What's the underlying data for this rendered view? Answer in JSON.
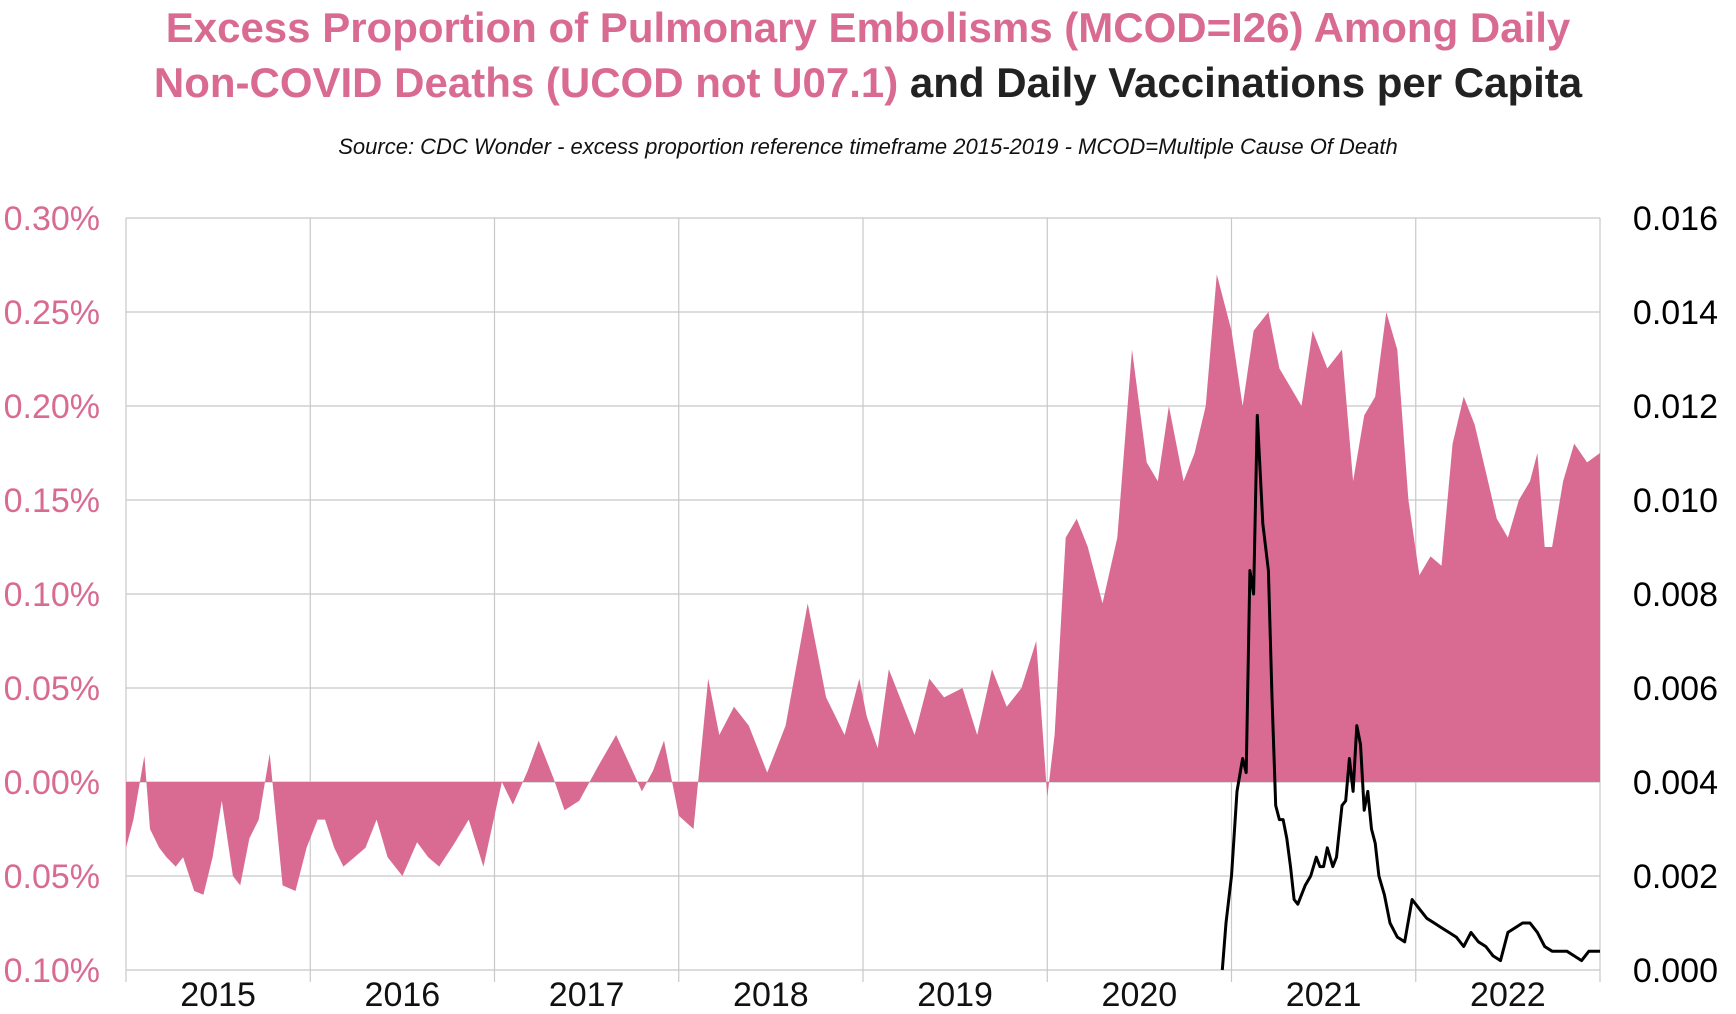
{
  "title": {
    "part1": "Excess Proportion of Pulmonary Embolisms (MCOD=I26) Among Daily",
    "part2_pink": "Non-COVID Deaths (UCOD not U07.1)",
    "part2_connector": " and ",
    "part2_dark": "Daily Vaccinations per Capita"
  },
  "subtitle": "Source: CDC Wonder - excess proportion reference timeframe 2015-2019 - MCOD=Multiple Cause Of Death",
  "colors": {
    "area": "#d96b93",
    "vax": "#000000",
    "grid": "#c8c8c8",
    "left_axis": "#d96b93",
    "right_axis": "#000000"
  },
  "chart_data": {
    "type": "area",
    "title": "Excess Proportion of Pulmonary Embolisms (MCOD=I26) Among Daily Non-COVID Deaths (UCOD not U07.1) and Daily Vaccinations per Capita",
    "subtitle": "Source: CDC Wonder - excess proportion reference timeframe 2015-2019 - MCOD=Multiple Cause Of Death",
    "x_categories": [
      "2015",
      "2016",
      "2017",
      "2018",
      "2019",
      "2020",
      "2021",
      "2022"
    ],
    "left_axis": {
      "ylim": [
        -0.1,
        0.3
      ],
      "ticks": [
        -0.1,
        -0.05,
        0.0,
        0.05,
        0.1,
        0.15,
        0.2,
        0.25,
        0.3
      ],
      "tick_labels": [
        "0.10%",
        "0.05%",
        "0.00%",
        "0.05%",
        "0.10%",
        "0.15%",
        "0.20%",
        "0.25%",
        "0.30%"
      ]
    },
    "right_axis": {
      "ylim": [
        0.0,
        0.016
      ],
      "ticks": [
        0.0,
        0.002,
        0.004,
        0.006,
        0.008,
        0.01,
        0.012,
        0.014,
        0.016
      ],
      "tick_labels": [
        "0.000",
        "0.002",
        "0.004",
        "0.006",
        "0.008",
        "0.010",
        "0.012",
        "0.014",
        "0.016"
      ]
    },
    "grid": true,
    "series": [
      {
        "kind": "area",
        "axis": "left",
        "x": [
          2015.0,
          2015.04,
          2015.1,
          2015.13,
          2015.18,
          2015.22,
          2015.27,
          2015.31,
          2015.37,
          2015.42,
          2015.47,
          2015.52,
          2015.58,
          2015.62,
          2015.67,
          2015.72,
          2015.78,
          2015.85,
          2015.92,
          2015.98,
          2016.04,
          2016.08,
          2016.13,
          2016.18,
          2016.24,
          2016.3,
          2016.36,
          2016.42,
          2016.5,
          2016.58,
          2016.64,
          2016.7,
          2016.78,
          2016.86,
          2016.94,
          2017.04,
          2017.1,
          2017.18,
          2017.24,
          2017.32,
          2017.38,
          2017.46,
          2017.56,
          2017.66,
          2017.74,
          2017.8,
          2017.86,
          2017.92,
          2018.0,
          2018.08,
          2018.16,
          2018.22,
          2018.3,
          2018.38,
          2018.48,
          2018.58,
          2018.7,
          2018.8,
          2018.9,
          2018.98,
          2019.02,
          2019.08,
          2019.14,
          2019.2,
          2019.28,
          2019.36,
          2019.44,
          2019.54,
          2019.62,
          2019.7,
          2019.78,
          2019.86,
          2019.94,
          2020.0,
          2020.04,
          2020.1,
          2020.16,
          2020.22,
          2020.3,
          2020.38,
          2020.46,
          2020.54,
          2020.6,
          2020.66,
          2020.74,
          2020.8,
          2020.86,
          2020.92,
          2021.0,
          2021.06,
          2021.12,
          2021.2,
          2021.26,
          2021.32,
          2021.38,
          2021.44,
          2021.52,
          2021.6,
          2021.66,
          2021.72,
          2021.78,
          2021.84,
          2021.9,
          2021.96,
          2022.02,
          2022.08,
          2022.14,
          2022.2,
          2022.26,
          2022.32,
          2022.38,
          2022.44,
          2022.5,
          2022.56,
          2022.62,
          2022.66,
          2022.7,
          2022.74,
          2022.8,
          2022.86,
          2022.93,
          2023.0
        ],
        "y": [
          -0.035,
          -0.02,
          0.014,
          -0.025,
          -0.035,
          -0.04,
          -0.045,
          -0.04,
          -0.058,
          -0.06,
          -0.04,
          -0.01,
          -0.05,
          -0.055,
          -0.03,
          -0.02,
          0.015,
          -0.055,
          -0.058,
          -0.035,
          -0.02,
          -0.02,
          -0.035,
          -0.045,
          -0.04,
          -0.035,
          -0.02,
          -0.04,
          -0.05,
          -0.032,
          -0.04,
          -0.045,
          -0.033,
          -0.02,
          -0.045,
          0.0,
          -0.012,
          0.006,
          0.022,
          0.002,
          -0.015,
          -0.01,
          0.008,
          0.025,
          0.008,
          -0.005,
          0.006,
          0.022,
          -0.018,
          -0.025,
          0.055,
          0.025,
          0.04,
          0.03,
          0.005,
          0.03,
          0.095,
          0.045,
          0.025,
          0.055,
          0.035,
          0.018,
          0.06,
          0.045,
          0.025,
          0.055,
          0.045,
          0.05,
          0.025,
          0.06,
          0.04,
          0.05,
          0.075,
          -0.008,
          0.025,
          0.13,
          0.14,
          0.125,
          0.095,
          0.13,
          0.23,
          0.17,
          0.16,
          0.2,
          0.16,
          0.175,
          0.2,
          0.27,
          0.24,
          0.2,
          0.24,
          0.25,
          0.22,
          0.21,
          0.2,
          0.24,
          0.22,
          0.23,
          0.16,
          0.195,
          0.205,
          0.25,
          0.23,
          0.15,
          0.11,
          0.12,
          0.115,
          0.18,
          0.205,
          0.19,
          0.165,
          0.14,
          0.13,
          0.15,
          0.16,
          0.175,
          0.125,
          0.125,
          0.16,
          0.18,
          0.17,
          0.175
        ]
      },
      {
        "kind": "line",
        "axis": "right",
        "x": [
          2020.95,
          2020.97,
          2021.0,
          2021.03,
          2021.06,
          2021.08,
          2021.1,
          2021.12,
          2021.14,
          2021.17,
          2021.2,
          2021.22,
          2021.24,
          2021.26,
          2021.28,
          2021.3,
          2021.32,
          2021.34,
          2021.36,
          2021.38,
          2021.4,
          2021.43,
          2021.46,
          2021.48,
          2021.5,
          2021.52,
          2021.55,
          2021.57,
          2021.6,
          2021.62,
          2021.64,
          2021.66,
          2021.68,
          2021.7,
          2021.72,
          2021.74,
          2021.76,
          2021.78,
          2021.8,
          2021.83,
          2021.86,
          2021.9,
          2021.94,
          2021.98,
          2022.02,
          2022.06,
          2022.1,
          2022.14,
          2022.18,
          2022.22,
          2022.26,
          2022.3,
          2022.34,
          2022.38,
          2022.42,
          2022.46,
          2022.5,
          2022.54,
          2022.58,
          2022.62,
          2022.66,
          2022.7,
          2022.74,
          2022.78,
          2022.82,
          2022.86,
          2022.9,
          2022.94,
          2022.98,
          2023.0
        ],
        "y": [
          0.0,
          0.001,
          0.002,
          0.0038,
          0.0045,
          0.0042,
          0.0085,
          0.008,
          0.0118,
          0.0095,
          0.0085,
          0.0058,
          0.0035,
          0.0032,
          0.0032,
          0.0028,
          0.0022,
          0.0015,
          0.0014,
          0.0016,
          0.0018,
          0.002,
          0.0024,
          0.0022,
          0.0022,
          0.0026,
          0.0022,
          0.0024,
          0.0035,
          0.0036,
          0.0045,
          0.0038,
          0.0052,
          0.0048,
          0.0034,
          0.0038,
          0.003,
          0.0027,
          0.002,
          0.0016,
          0.001,
          0.0007,
          0.0006,
          0.0015,
          0.0013,
          0.0011,
          0.001,
          0.0009,
          0.0008,
          0.0007,
          0.0005,
          0.0008,
          0.0006,
          0.0005,
          0.0003,
          0.0002,
          0.0008,
          0.0009,
          0.001,
          0.001,
          0.0008,
          0.0005,
          0.0004,
          0.0004,
          0.0004,
          0.0003,
          0.0002,
          0.0004,
          0.0004,
          0.0004
        ]
      }
    ]
  }
}
